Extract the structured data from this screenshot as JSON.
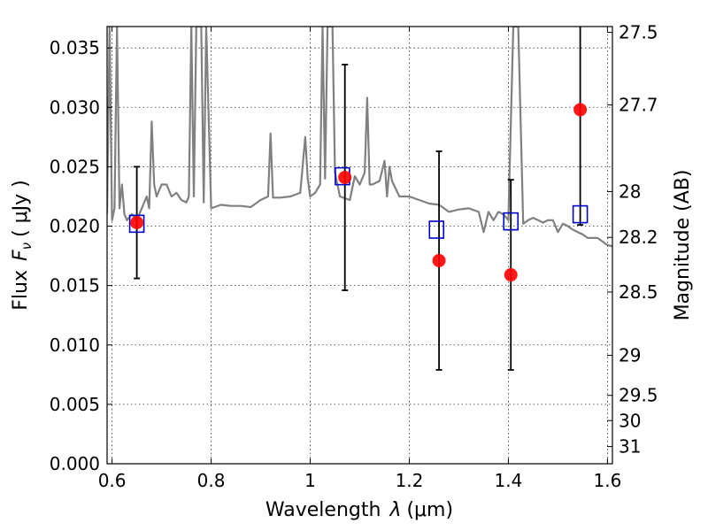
{
  "chart_data": {
    "type": "scatter",
    "xlabel_prefix": "Wavelength",
    "xlabel_symbol": "λ",
    "xlabel_unit": "(μm)",
    "ylabel_prefix": "Flux",
    "ylabel_symbol": "F",
    "ylabel_subscript": "ν",
    "ylabel_unit": "( μJy )",
    "y2label": "Magnitude (AB)",
    "xlim": [
      0.59,
      1.61
    ],
    "ylim": [
      0.0,
      0.0368
    ],
    "grid": true,
    "x_ticks": [
      {
        "value": 0.6,
        "label": "0.6"
      },
      {
        "value": 0.8,
        "label": "0.8"
      },
      {
        "value": 1.0,
        "label": "1"
      },
      {
        "value": 1.2,
        "label": "1.2"
      },
      {
        "value": 1.4,
        "label": "1.4"
      },
      {
        "value": 1.6,
        "label": "1.6"
      }
    ],
    "y_ticks": [
      {
        "value": 0.0,
        "label": "0.000"
      },
      {
        "value": 0.005,
        "label": "0.005"
      },
      {
        "value": 0.01,
        "label": "0.010"
      },
      {
        "value": 0.015,
        "label": "0.015"
      },
      {
        "value": 0.02,
        "label": "0.020"
      },
      {
        "value": 0.025,
        "label": "0.025"
      },
      {
        "value": 0.03,
        "label": "0.030"
      },
      {
        "value": 0.035,
        "label": "0.035"
      }
    ],
    "y2_ticks": [
      {
        "value": 27.5,
        "label": "27.5"
      },
      {
        "value": 27.7,
        "label": "27.7"
      },
      {
        "value": 28.0,
        "label": "28"
      },
      {
        "value": 28.2,
        "label": "28.2"
      },
      {
        "value": 28.5,
        "label": "28.5"
      },
      {
        "value": 29.0,
        "label": "29"
      },
      {
        "value": 29.5,
        "label": "29.5"
      },
      {
        "value": 30.0,
        "label": "30"
      },
      {
        "value": 31.0,
        "label": "31"
      }
    ],
    "colors": {
      "model": "#808080",
      "observed": "#ff0000",
      "model_photometry": "#0000cc",
      "errorbar": "#000000"
    },
    "series": [
      {
        "role": "observed",
        "marker": "circle",
        "points": [
          {
            "x": 0.65,
            "y": 0.0203,
            "yerr": 0.0047
          },
          {
            "x": 1.07,
            "y": 0.0241,
            "yerr": 0.0095
          },
          {
            "x": 1.26,
            "y": 0.0171,
            "yerr": 0.0092
          },
          {
            "x": 1.405,
            "y": 0.0159,
            "yerr": 0.008
          },
          {
            "x": 1.545,
            "y": 0.0298,
            "yerr": 0.0097
          }
        ]
      },
      {
        "role": "model_photometry",
        "marker": "square",
        "points": [
          {
            "x": 0.65,
            "y": 0.0202
          },
          {
            "x": 1.065,
            "y": 0.0242
          },
          {
            "x": 1.255,
            "y": 0.0197
          },
          {
            "x": 1.405,
            "y": 0.0204
          },
          {
            "x": 1.545,
            "y": 0.021
          }
        ]
      },
      {
        "role": "model",
        "line": true,
        "x": [
          0.59,
          0.595,
          0.6,
          0.605,
          0.61,
          0.615,
          0.62,
          0.625,
          0.63,
          0.64,
          0.65,
          0.66,
          0.67,
          0.675,
          0.68,
          0.685,
          0.69,
          0.7,
          0.71,
          0.72,
          0.73,
          0.74,
          0.75,
          0.755,
          0.76,
          0.765,
          0.77,
          0.775,
          0.78,
          0.785,
          0.79,
          0.8,
          0.82,
          0.84,
          0.86,
          0.88,
          0.9,
          0.915,
          0.92,
          0.925,
          0.94,
          0.96,
          0.98,
          0.99,
          0.995,
          1.0,
          1.01,
          1.02,
          1.025,
          1.03,
          1.035,
          1.04,
          1.045,
          1.05,
          1.06,
          1.08,
          1.09,
          1.1,
          1.11,
          1.115,
          1.12,
          1.125,
          1.14,
          1.15,
          1.155,
          1.16,
          1.165,
          1.18,
          1.2,
          1.22,
          1.24,
          1.26,
          1.28,
          1.3,
          1.32,
          1.34,
          1.35,
          1.36,
          1.37,
          1.38,
          1.39,
          1.4,
          1.41,
          1.42,
          1.43,
          1.44,
          1.45,
          1.46,
          1.47,
          1.48,
          1.49,
          1.5,
          1.51,
          1.52,
          1.53,
          1.54,
          1.55,
          1.56,
          1.58,
          1.6,
          1.61
        ],
        "y": [
          0.021,
          0.0368,
          0.0205,
          0.0215,
          0.0368,
          0.0215,
          0.0235,
          0.021,
          0.0205,
          0.021,
          0.0205,
          0.0215,
          0.0225,
          0.0215,
          0.0288,
          0.0235,
          0.0225,
          0.0235,
          0.0235,
          0.0225,
          0.0228,
          0.0222,
          0.022,
          0.0225,
          0.0368,
          0.0225,
          0.0368,
          0.0368,
          0.0368,
          0.022,
          0.0368,
          0.0215,
          0.0218,
          0.0217,
          0.0217,
          0.0216,
          0.0222,
          0.0225,
          0.0278,
          0.0224,
          0.0224,
          0.0225,
          0.0228,
          0.0275,
          0.024,
          0.0225,
          0.0228,
          0.0235,
          0.0368,
          0.024,
          0.0368,
          0.0368,
          0.0368,
          0.0245,
          0.0225,
          0.0222,
          0.0242,
          0.0235,
          0.0245,
          0.0308,
          0.0235,
          0.0235,
          0.0238,
          0.0255,
          0.0225,
          0.025,
          0.0238,
          0.0225,
          0.0225,
          0.0222,
          0.0219,
          0.0218,
          0.0212,
          0.0214,
          0.0215,
          0.0212,
          0.0195,
          0.0212,
          0.0205,
          0.0212,
          0.021,
          0.0205,
          0.0368,
          0.0368,
          0.0202,
          0.0205,
          0.0207,
          0.0205,
          0.0203,
          0.0205,
          0.0205,
          0.0195,
          0.0202,
          0.02,
          0.0197,
          0.0195,
          0.0193,
          0.019,
          0.019,
          0.0184,
          0.0183
        ]
      }
    ]
  }
}
